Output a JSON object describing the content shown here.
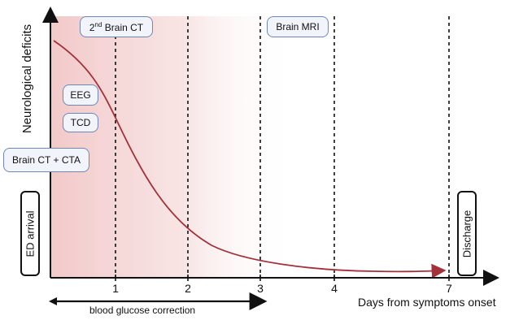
{
  "axes": {
    "y_label": "Neurological deficits",
    "x_label": "Days from symptoms onset",
    "x_ticks": [
      "1",
      "2",
      "3",
      "4",
      "7"
    ]
  },
  "events": {
    "ed_arrival": "ED arrival",
    "brain_ct_cta": "Brain CT + CTA",
    "tcd": "TCD",
    "eeg": "EEG",
    "second_ct_sup": "nd",
    "second_ct_num": "2",
    "second_ct_rest": " Brain CT",
    "brain_mri": "Brain MRI",
    "discharge": "Discharge"
  },
  "glucose_label": "blood glucose correction",
  "colors": {
    "curve": "#a3303a",
    "shade": "#f2c9c9",
    "box_border": "#6f86b6",
    "box_fill": "#f1f5fb"
  }
}
